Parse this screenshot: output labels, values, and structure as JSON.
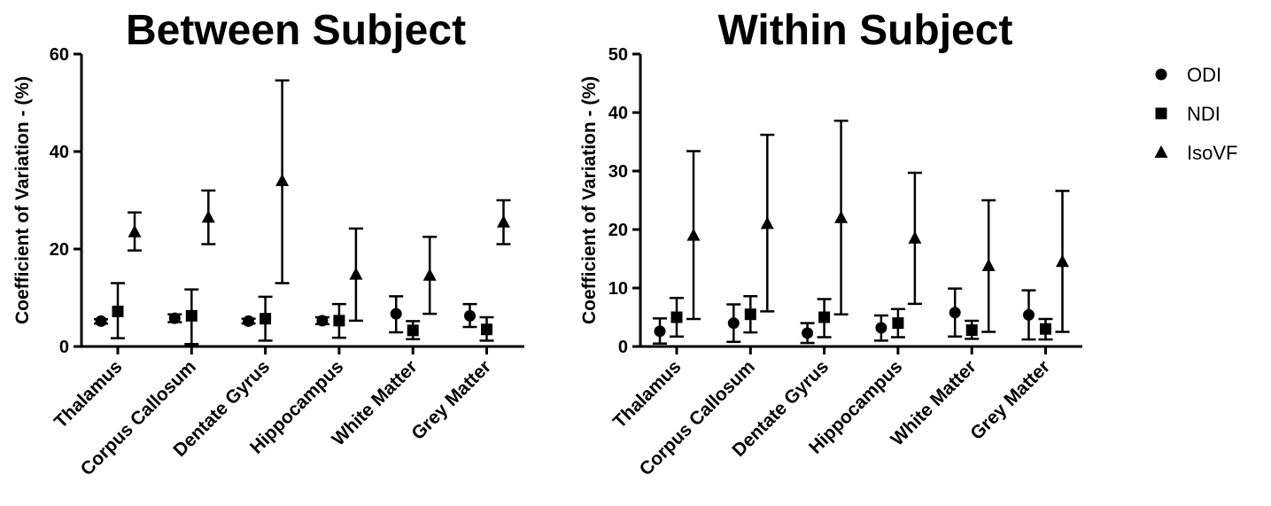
{
  "legend": {
    "entries": [
      {
        "name": "ODI",
        "marker": "circle-icon"
      },
      {
        "name": "NDI",
        "marker": "square-icon"
      },
      {
        "name": "IsoVF",
        "marker": "triangle-icon"
      }
    ],
    "placement": "right"
  },
  "chart_data": [
    {
      "type": "scatter",
      "title": "Between Subject",
      "ylabel": "Coefficient of Variation - (%)",
      "xlabel": "",
      "ylim": [
        0,
        60
      ],
      "yticks": [
        0,
        20,
        40,
        60
      ],
      "grid": false,
      "categories": [
        "Thalamus",
        "Corpus Callosum",
        "Dentate Gyrus",
        "Hippocampus",
        "White Matter",
        "Grey Matter"
      ],
      "series": [
        {
          "name": "ODI",
          "marker": "circle",
          "values": [
            5.2,
            5.8,
            5.2,
            5.3,
            6.7,
            6.3
          ],
          "lower": [
            4.7,
            5.0,
            4.7,
            4.6,
            2.9,
            4.0
          ],
          "upper": [
            5.6,
            6.6,
            5.7,
            6.0,
            10.3,
            8.7
          ]
        },
        {
          "name": "NDI",
          "marker": "square",
          "values": [
            7.2,
            6.3,
            5.7,
            5.3,
            3.3,
            3.5
          ],
          "lower": [
            1.7,
            0.5,
            1.2,
            1.8,
            1.5,
            1.2
          ],
          "upper": [
            13.0,
            11.7,
            10.2,
            8.7,
            5.2,
            6.0
          ]
        },
        {
          "name": "IsoVF",
          "marker": "triangle",
          "values": [
            23.5,
            26.5,
            34.0,
            14.8,
            14.6,
            25.5
          ],
          "lower": [
            19.7,
            21.0,
            13.0,
            5.3,
            6.7,
            21.0
          ],
          "upper": [
            27.5,
            32.0,
            54.6,
            24.2,
            22.5,
            30.0
          ]
        }
      ]
    },
    {
      "type": "scatter",
      "title": "Within Subject",
      "ylabel": "Coefficient of Variation - (%)",
      "xlabel": "",
      "ylim": [
        0,
        50
      ],
      "yticks": [
        0,
        10,
        20,
        30,
        40,
        50
      ],
      "grid": false,
      "categories": [
        "Thalamus",
        "Corpus Callosum",
        "Dentate Gyrus",
        "Hippocampus",
        "White Matter",
        "Grey Matter"
      ],
      "series": [
        {
          "name": "ODI",
          "marker": "circle",
          "values": [
            2.6,
            4.0,
            2.3,
            3.2,
            5.8,
            5.4
          ],
          "lower": [
            0.5,
            0.8,
            0.6,
            1.0,
            1.7,
            1.2
          ],
          "upper": [
            4.8,
            7.2,
            4.0,
            5.3,
            9.9,
            9.6
          ]
        },
        {
          "name": "NDI",
          "marker": "square",
          "values": [
            5.0,
            5.5,
            5.0,
            4.0,
            2.8,
            3.0
          ],
          "lower": [
            1.7,
            2.4,
            1.6,
            1.6,
            1.3,
            1.2
          ],
          "upper": [
            8.3,
            8.6,
            8.1,
            6.4,
            4.4,
            4.7
          ]
        },
        {
          "name": "IsoVF",
          "marker": "triangle",
          "values": [
            19.0,
            21.0,
            22.0,
            18.5,
            13.8,
            14.5
          ],
          "lower": [
            4.7,
            6.0,
            5.5,
            7.3,
            2.5,
            2.5
          ],
          "upper": [
            33.4,
            36.2,
            38.6,
            29.7,
            25.0,
            26.6
          ]
        }
      ]
    }
  ]
}
